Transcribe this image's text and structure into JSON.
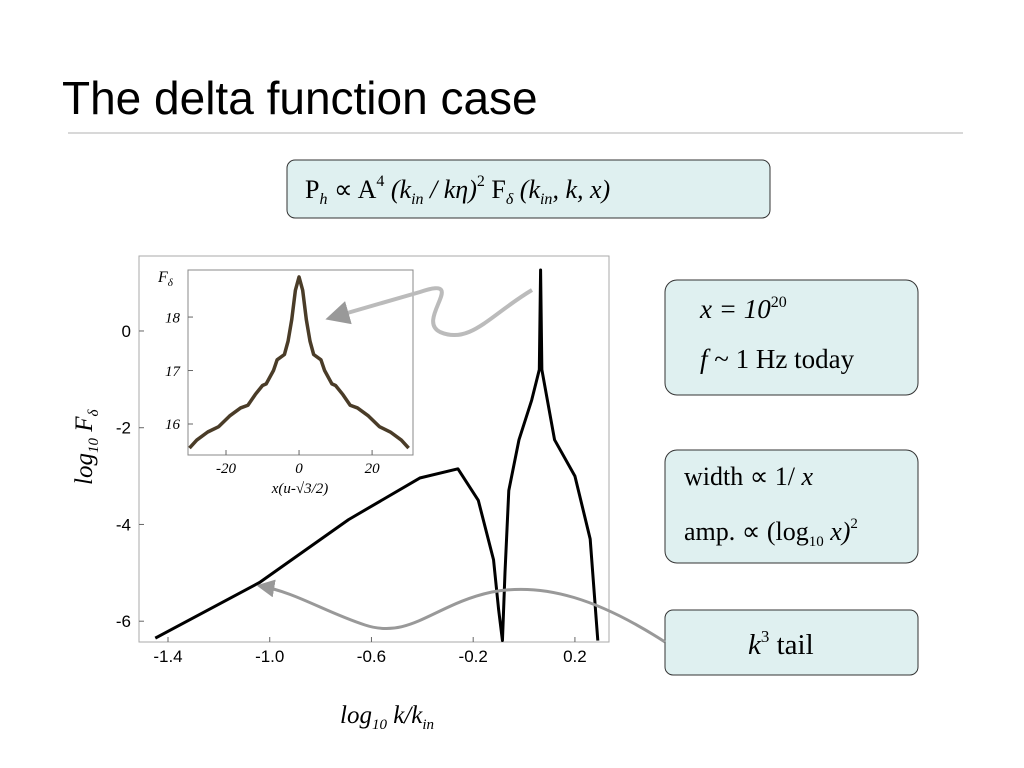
{
  "title": "The delta function case",
  "formula": [
    "P",
    "h",
    " ∝ A",
    "4",
    " (k",
    "in",
    " / kη)",
    "2",
    " F",
    "δ",
    " (k",
    "in",
    ", k, x)"
  ],
  "boxes": [
    {
      "lines": [
        [
          "x = 10",
          "20"
        ],
        [
          "f",
          " ~ 1 Hz today"
        ]
      ]
    },
    {
      "lines": [
        [
          "width  ∝ 1/ ",
          "x"
        ],
        [
          "amp.  ∝ (log",
          "10",
          " x)",
          "2"
        ]
      ]
    },
    {
      "lines": [
        [
          "k",
          "3",
          "  tail"
        ]
      ]
    }
  ],
  "chart_data": [
    {
      "type": "line",
      "x_label": [
        "log",
        "10",
        " k/k",
        "in"
      ],
      "y_label": [
        "log",
        "10",
        " F",
        "δ"
      ],
      "x": [
        -1.45,
        -1.04,
        -0.69,
        -0.41,
        -0.26,
        -0.18,
        -0.12,
        -0.1,
        -0.085,
        -0.075,
        -0.06,
        -0.02,
        0.03,
        0.06,
        0.065,
        0.07,
        0.12,
        0.2,
        0.26,
        0.29
      ],
      "values": [
        -6.35,
        -5.2,
        -3.9,
        -3.04,
        -2.85,
        -3.5,
        -4.73,
        -5.76,
        -6.4,
        -5.0,
        -3.3,
        -2.25,
        -1.43,
        -0.8,
        1.26,
        -0.8,
        -2.25,
        -3.0,
        -4.3,
        -6.4
      ],
      "color": "#000000",
      "xlim": [
        -1.514,
        0.334
      ],
      "ylim": [
        -6.43,
        1.55
      ],
      "xticks": [
        -1.4,
        {
          "value": -1,
          "label": "-1.0"
        },
        -0.6,
        -0.2,
        0.2
      ],
      "yticks": [
        0,
        -2,
        -4,
        -6
      ]
    },
    {
      "type": "line",
      "x_label": "x(u-√3/2)",
      "y_label": [
        "F",
        "δ"
      ],
      "x": [
        -30,
        -28,
        -25,
        -22,
        -19,
        -16,
        -14,
        -12,
        -10,
        -9,
        -7,
        -6,
        -4,
        -3,
        -2,
        -1,
        0,
        1,
        2,
        3,
        4,
        6,
        7,
        9,
        10,
        12,
        14,
        16,
        19,
        22,
        25,
        28,
        30
      ],
      "values": [
        15.55,
        15.7,
        15.85,
        15.95,
        16.15,
        16.3,
        16.35,
        16.55,
        16.72,
        16.75,
        17.0,
        17.2,
        17.3,
        17.55,
        17.95,
        18.5,
        18.75,
        18.5,
        17.95,
        17.55,
        17.3,
        17.2,
        17.0,
        16.75,
        16.72,
        16.55,
        16.35,
        16.3,
        16.15,
        15.95,
        15.85,
        15.7,
        15.55
      ],
      "color": "#4a3c28",
      "xlim": [
        -30.4,
        31.2
      ],
      "ylim": [
        15.42,
        18.88
      ],
      "xticks": [
        -20,
        0,
        20
      ],
      "yticks": [
        16,
        17,
        18
      ]
    }
  ]
}
